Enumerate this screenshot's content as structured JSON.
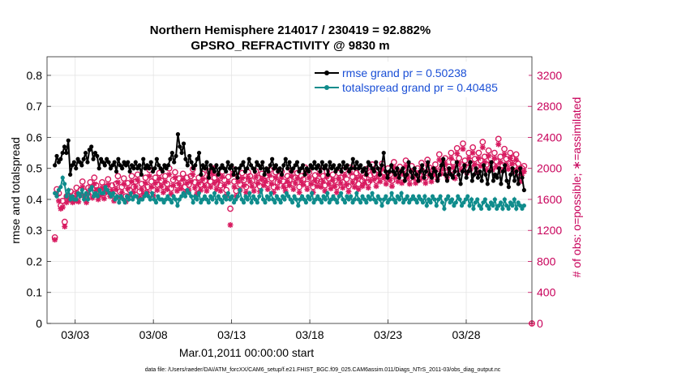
{
  "chart_data": {
    "type": "line",
    "title": "Northern Hemisphere 214017 / 230419 = 92.882%",
    "subtitle": "GPSRO_REFRACTIVITY @ 9830 m",
    "xlabel": "Mar.01,2011 00:00:00 start",
    "ylabel": "rmse and totalspread",
    "ylabel_right": "# of obs: o=possible; ∗=assimilated",
    "x_ticks": [
      "03/03",
      "03/08",
      "03/13",
      "03/18",
      "03/23",
      "03/28"
    ],
    "x_tick_days": [
      2,
      7,
      12,
      17,
      22,
      27
    ],
    "xlim": [
      0.2,
      31.2
    ],
    "ylim": [
      0,
      0.86
    ],
    "y_ticks": [
      "0",
      "0.1",
      "0.2",
      "0.3",
      "0.4",
      "0.5",
      "0.6",
      "0.7",
      "0.8"
    ],
    "y_tick_values": [
      0,
      0.1,
      0.2,
      0.3,
      0.4,
      0.5,
      0.6,
      0.7,
      0.8
    ],
    "ylim_right": [
      0,
      3440
    ],
    "y_ticks_right": [
      "0",
      "400",
      "800",
      "1200",
      "1600",
      "2000",
      "2400",
      "2800",
      "3200"
    ],
    "y_tick_values_right": [
      0,
      400,
      800,
      1200,
      1600,
      2000,
      2400,
      2800,
      3200
    ],
    "grid": true,
    "legend": "top-right",
    "colors": {
      "rmse": "#000000",
      "spread": "#0f8c8c",
      "obs": "#d81b60",
      "legend_text": "#1a4fd6"
    },
    "series": [
      {
        "name": "rmse grand pr = 0.50238",
        "axis": "left",
        "values": [
          0.51,
          0.54,
          0.52,
          0.53,
          0.55,
          0.57,
          0.55,
          0.59,
          0.48,
          0.51,
          0.52,
          0.5,
          0.53,
          0.52,
          0.51,
          0.53,
          0.55,
          0.52,
          0.56,
          0.57,
          0.53,
          0.55,
          0.54,
          0.5,
          0.53,
          0.52,
          0.51,
          0.53,
          0.52,
          0.5,
          0.51,
          0.52,
          0.49,
          0.53,
          0.51,
          0.5,
          0.52,
          0.51,
          0.52,
          0.49,
          0.51,
          0.5,
          0.52,
          0.5,
          0.51,
          0.48,
          0.53,
          0.5,
          0.51,
          0.5,
          0.52,
          0.49,
          0.5,
          0.53,
          0.51,
          0.5,
          0.49,
          0.51,
          0.5,
          0.51,
          0.53,
          0.55,
          0.52,
          0.54,
          0.61,
          0.57,
          0.55,
          0.58,
          0.53,
          0.51,
          0.54,
          0.52,
          0.5,
          0.51,
          0.53,
          0.55,
          0.48,
          0.51,
          0.5,
          0.52,
          0.47,
          0.51,
          0.5,
          0.49,
          0.51,
          0.48,
          0.5,
          0.51,
          0.5,
          0.49,
          0.52,
          0.5,
          0.51,
          0.48,
          0.5,
          0.47,
          0.5,
          0.51,
          0.52,
          0.49,
          0.5,
          0.53,
          0.51,
          0.5,
          0.49,
          0.52,
          0.51,
          0.5,
          0.52,
          0.48,
          0.5,
          0.49,
          0.51,
          0.53,
          0.5,
          0.51,
          0.49,
          0.5,
          0.48,
          0.51,
          0.53,
          0.5,
          0.52,
          0.49,
          0.5,
          0.51,
          0.52,
          0.49,
          0.5,
          0.51,
          0.48,
          0.5,
          0.49,
          0.51,
          0.5,
          0.52,
          0.5,
          0.51,
          0.49,
          0.52,
          0.5,
          0.51,
          0.48,
          0.52,
          0.5,
          0.51,
          0.49,
          0.5,
          0.51,
          0.49,
          0.52,
          0.5,
          0.51,
          0.49,
          0.5,
          0.53,
          0.5,
          0.52,
          0.5,
          0.51,
          0.49,
          0.5,
          0.48,
          0.52,
          0.51,
          0.5,
          0.49,
          0.52,
          0.5,
          0.48,
          0.51,
          0.55,
          0.49,
          0.47,
          0.49,
          0.51,
          0.49,
          0.48,
          0.5,
          0.47,
          0.49,
          0.5,
          0.46,
          0.48,
          0.52,
          0.49,
          0.47,
          0.5,
          0.48,
          0.46,
          0.49,
          0.51,
          0.47,
          0.49,
          0.52,
          0.48,
          0.47,
          0.5,
          0.49,
          0.46,
          0.48,
          0.51,
          0.53,
          0.48,
          0.46,
          0.5,
          0.48,
          0.47,
          0.49,
          0.52,
          0.48,
          0.45,
          0.49,
          0.51,
          0.47,
          0.49,
          0.52,
          0.46,
          0.48,
          0.5,
          0.47,
          0.49,
          0.46,
          0.51,
          0.48,
          0.45,
          0.49,
          0.52,
          0.46,
          0.48,
          0.47,
          0.5,
          0.45,
          0.49,
          0.51,
          0.46,
          0.44,
          0.48,
          0.5,
          0.46,
          0.49,
          0.45,
          0.5,
          0.47,
          0.43
        ]
      },
      {
        "name": "totalspread grand pr = 0.40485",
        "axis": "left",
        "values": [
          0.42,
          0.41,
          0.43,
          0.44,
          0.47,
          0.45,
          0.41,
          0.43,
          0.4,
          0.41,
          0.4,
          0.4,
          0.42,
          0.41,
          0.43,
          0.4,
          0.42,
          0.4,
          0.43,
          0.44,
          0.41,
          0.42,
          0.41,
          0.43,
          0.42,
          0.42,
          0.44,
          0.43,
          0.42,
          0.41,
          0.42,
          0.4,
          0.41,
          0.39,
          0.41,
          0.4,
          0.39,
          0.41,
          0.4,
          0.42,
          0.4,
          0.41,
          0.41,
          0.39,
          0.4,
          0.4,
          0.41,
          0.42,
          0.41,
          0.4,
          0.42,
          0.4,
          0.39,
          0.41,
          0.4,
          0.4,
          0.39,
          0.4,
          0.41,
          0.4,
          0.39,
          0.41,
          0.4,
          0.38,
          0.4,
          0.41,
          0.42,
          0.41,
          0.43,
          0.42,
          0.41,
          0.39,
          0.41,
          0.4,
          0.42,
          0.39,
          0.4,
          0.41,
          0.4,
          0.39,
          0.41,
          0.4,
          0.42,
          0.39,
          0.41,
          0.4,
          0.39,
          0.41,
          0.4,
          0.42,
          0.4,
          0.41,
          0.39,
          0.4,
          0.41,
          0.43,
          0.4,
          0.39,
          0.41,
          0.4,
          0.42,
          0.39,
          0.41,
          0.4,
          0.39,
          0.41,
          0.43,
          0.4,
          0.39,
          0.41,
          0.4,
          0.42,
          0.4,
          0.39,
          0.41,
          0.4,
          0.39,
          0.41,
          0.4,
          0.42,
          0.41,
          0.4,
          0.39,
          0.41,
          0.4,
          0.38,
          0.4,
          0.41,
          0.4,
          0.39,
          0.41,
          0.4,
          0.42,
          0.39,
          0.4,
          0.41,
          0.4,
          0.39,
          0.41,
          0.4,
          0.42,
          0.39,
          0.4,
          0.41,
          0.4,
          0.39,
          0.41,
          0.42,
          0.4,
          0.39,
          0.41,
          0.4,
          0.41,
          0.39,
          0.4,
          0.42,
          0.4,
          0.39,
          0.41,
          0.4,
          0.39,
          0.41,
          0.4,
          0.42,
          0.4,
          0.39,
          0.41,
          0.4,
          0.38,
          0.4,
          0.41,
          0.39,
          0.4,
          0.42,
          0.4,
          0.39,
          0.41,
          0.4,
          0.42,
          0.39,
          0.4,
          0.41,
          0.39,
          0.4,
          0.41,
          0.4,
          0.39,
          0.41,
          0.4,
          0.39,
          0.41,
          0.38,
          0.4,
          0.39,
          0.41,
          0.4,
          0.38,
          0.4,
          0.41,
          0.39,
          0.37,
          0.4,
          0.41,
          0.39,
          0.4,
          0.38,
          0.39,
          0.41,
          0.4,
          0.38,
          0.39,
          0.4,
          0.41,
          0.38,
          0.4,
          0.37,
          0.39,
          0.4,
          0.38,
          0.37,
          0.39,
          0.4,
          0.38,
          0.37,
          0.39,
          0.38,
          0.4,
          0.37,
          0.38,
          0.39,
          0.37,
          0.4,
          0.38,
          0.37,
          0.39,
          0.38,
          0.4,
          0.37,
          0.39,
          0.38,
          0.37,
          0.38
        ]
      },
      {
        "name": "obs possible",
        "axis": "right",
        "marker": "o",
        "values": [
          1110,
          1730,
          1680,
          1520,
          1580,
          1310,
          1640,
          1650,
          1700,
          1620,
          1670,
          1750,
          1640,
          1720,
          1830,
          1700,
          1620,
          1750,
          1820,
          1690,
          1880,
          1780,
          1670,
          1720,
          1820,
          1680,
          1760,
          1860,
          1700,
          1780,
          1650,
          1800,
          1900,
          1700,
          1760,
          1870,
          1640,
          1810,
          1720,
          1900,
          1760,
          1830,
          1920,
          1700,
          1800,
          1740,
          1880,
          1760,
          1980,
          1830,
          1720,
          1880,
          1790,
          1940,
          1840,
          1760,
          1900,
          1800,
          2000,
          1740,
          1850,
          1950,
          1780,
          1870,
          1810,
          1930,
          1760,
          1880,
          1790,
          1900,
          1990,
          1820,
          1740,
          1880,
          1790,
          1930,
          1840,
          1780,
          1960,
          1830,
          2000,
          1880,
          1800,
          1910,
          1780,
          1960,
          1850,
          1720,
          1890,
          1480,
          1990,
          1830,
          1710,
          1900,
          1790,
          1940,
          1850,
          1760,
          1950,
          1900,
          1840,
          1780,
          1960,
          1880,
          1770,
          1930,
          1850,
          1900,
          1800,
          1980,
          1870,
          1760,
          1950,
          1820,
          1900,
          1960,
          1830,
          1780,
          1900,
          1850,
          1970,
          1800,
          1880,
          1940,
          1760,
          1900,
          1860,
          2010,
          1800,
          1950,
          1870,
          1760,
          1910,
          1840,
          1990,
          1830,
          1900,
          1780,
          1960,
          1870,
          1810,
          1920,
          1840,
          1760,
          1940,
          1880,
          1820,
          1980,
          1860,
          1770,
          2010,
          1890,
          1830,
          1940,
          1800,
          1960,
          1840,
          1880,
          1990,
          1820,
          1910,
          2050,
          1930,
          1840,
          1980,
          1900,
          2060,
          1950,
          1870,
          2000,
          1920,
          1840,
          2080,
          1960,
          1900,
          2020,
          1880,
          1990,
          2100,
          1950,
          1870,
          2030,
          1950,
          1880,
          2000,
          1920,
          2070,
          1950,
          1880,
          2110,
          2010,
          1900,
          1990,
          2050,
          1930,
          2180,
          2000,
          2070,
          2130,
          1950,
          2020,
          2200,
          2080,
          1940,
          2260,
          2130,
          2050,
          2320,
          2100,
          2010,
          2200,
          2060,
          2270,
          2120,
          2020,
          2200,
          2100,
          2340,
          2150,
          2050,
          2230,
          2130,
          2050,
          2200,
          2090,
          2380,
          2150,
          2040,
          2250,
          2120,
          2060,
          2200,
          2130,
          2030,
          2180,
          2060,
          1900,
          2000,
          2030
        ]
      },
      {
        "name": "obs assimilated",
        "axis": "right",
        "marker": "*",
        "values": [
          1080,
          1660,
          1580,
          1480,
          1500,
          1250,
          1560,
          1590,
          1640,
          1560,
          1580,
          1680,
          1570,
          1650,
          1760,
          1630,
          1560,
          1680,
          1740,
          1620,
          1800,
          1720,
          1600,
          1650,
          1750,
          1610,
          1690,
          1790,
          1640,
          1710,
          1580,
          1730,
          1820,
          1630,
          1690,
          1800,
          1570,
          1740,
          1650,
          1830,
          1690,
          1760,
          1850,
          1630,
          1730,
          1670,
          1810,
          1690,
          1900,
          1760,
          1650,
          1810,
          1720,
          1870,
          1770,
          1690,
          1830,
          1730,
          1920,
          1670,
          1780,
          1880,
          1710,
          1800,
          1740,
          1860,
          1690,
          1810,
          1720,
          1830,
          1920,
          1750,
          1670,
          1810,
          1720,
          1860,
          1770,
          1710,
          1890,
          1760,
          1930,
          1810,
          1730,
          1840,
          1710,
          1890,
          1780,
          1650,
          1820,
          1270,
          1920,
          1760,
          1640,
          1830,
          1720,
          1870,
          1780,
          1690,
          1880,
          1830,
          1770,
          1710,
          1890,
          1810,
          1700,
          1860,
          1780,
          1830,
          1730,
          1910,
          1800,
          1690,
          1880,
          1750,
          1830,
          1890,
          1760,
          1710,
          1830,
          1780,
          1900,
          1730,
          1810,
          1870,
          1690,
          1830,
          1790,
          1940,
          1730,
          1880,
          1800,
          1690,
          1840,
          1770,
          1920,
          1760,
          1830,
          1710,
          1890,
          1800,
          1740,
          1850,
          1770,
          1690,
          1870,
          1810,
          1750,
          1910,
          1790,
          1700,
          1940,
          1820,
          1760,
          1870,
          1730,
          1890,
          1770,
          1810,
          1920,
          1750,
          1840,
          1980,
          1860,
          1770,
          1910,
          1830,
          1990,
          1880,
          1800,
          1930,
          1850,
          1770,
          2010,
          1890,
          1830,
          1950,
          1810,
          1920,
          2030,
          1880,
          1800,
          1960,
          1880,
          1810,
          1930,
          1850,
          2000,
          1880,
          1810,
          2040,
          1940,
          1830,
          1920,
          1980,
          1860,
          2110,
          1930,
          2000,
          2060,
          1880,
          1950,
          2130,
          2010,
          1870,
          2190,
          2060,
          1980,
          2250,
          2030,
          1940,
          2130,
          1990,
          2200,
          2050,
          1950,
          2130,
          2030,
          2270,
          2080,
          1980,
          2160,
          2060,
          1980,
          2130,
          2020,
          2310,
          2080,
          1970,
          2180,
          2050,
          1990,
          2130,
          2060,
          1960,
          2110,
          1990,
          1830,
          1930,
          1960
        ]
      }
    ],
    "footer": "data file: /Users/raeder/DAI/ATM_forcXX/CAM6_setup/f.e21.FHIST_BGC.f09_025.CAM6assim.011/Diags_NTrS_2011-03/obs_diag_output.nc"
  }
}
